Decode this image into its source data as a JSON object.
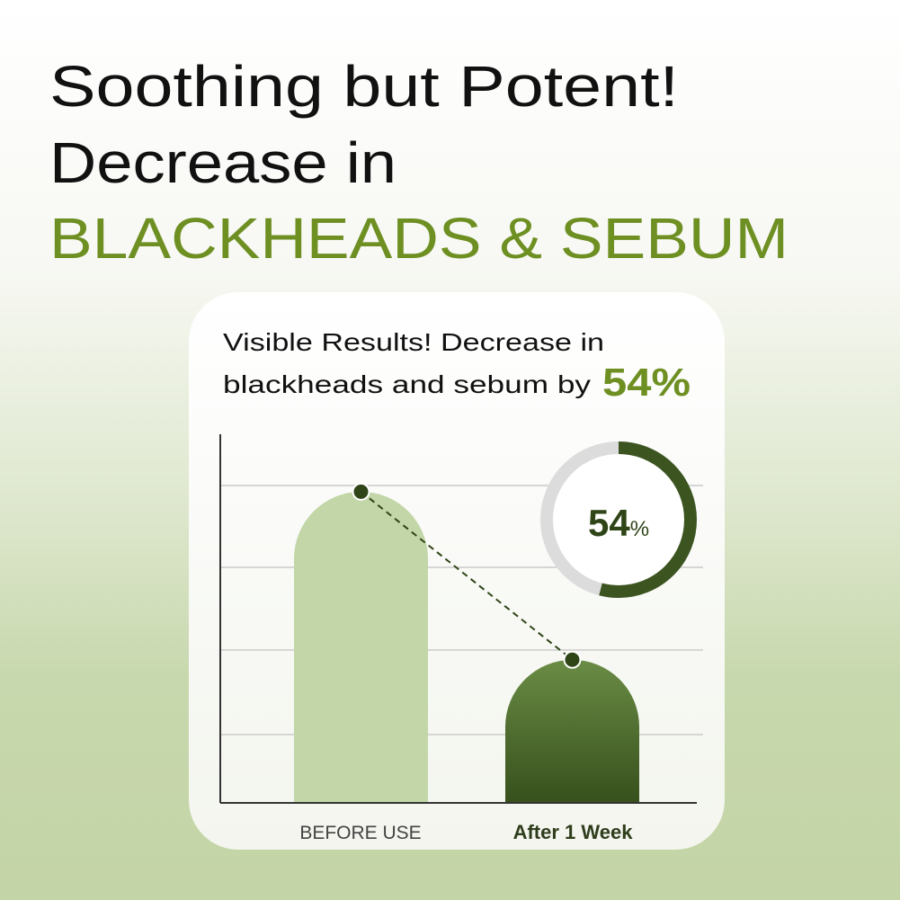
{
  "headline": {
    "line1": "Soothing but Potent!",
    "line2": "Decrease in",
    "line3": "BLACKHEADS & SEBUM"
  },
  "card": {
    "line1": "Visible Results! Decrease in",
    "line2": "blackheads and sebum by",
    "highlight": "54%"
  },
  "colors": {
    "accent_green": "#6e8f22",
    "dark_green": "#3b5420",
    "light_green": "#c3d6a8",
    "donut_track": "#dcdcdc"
  },
  "chart_data": {
    "type": "bar",
    "categories": [
      "BEFORE USE",
      "After 1 Week"
    ],
    "values": [
      100,
      46
    ],
    "ylim": [
      0,
      130
    ],
    "grid": true,
    "connector": "dashed line between bar tops",
    "donut": {
      "value": 54,
      "number": "54",
      "unit": "%"
    }
  }
}
